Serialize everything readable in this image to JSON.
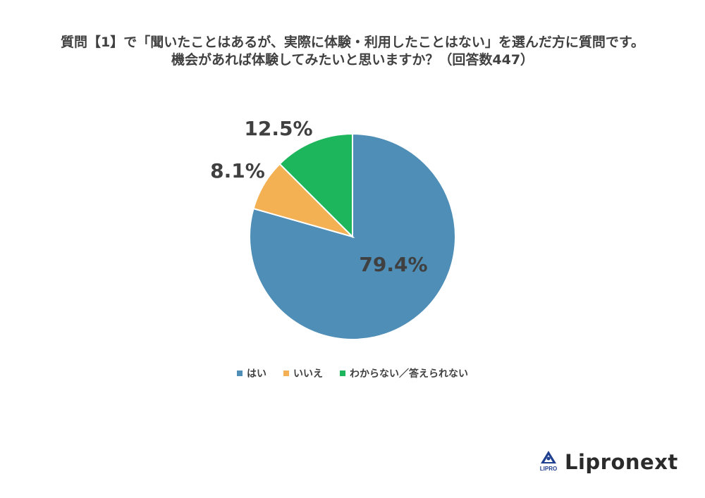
{
  "title": {
    "line1": "質問【1】で「聞いたことはあるが、実際に体験・利用したことはない」を選んだ方に質問です。",
    "line2": "機会があれば体験してみたいと思いますか？（回答数447）"
  },
  "chart_data": {
    "type": "pie",
    "title": "質問【1】で「聞いたことはあるが、実際に体験・利用したことはない」を選んだ方に質問です。機会があれば体験してみたいと思いますか？（回答数447）",
    "start_angle": "12 o'clock, clockwise",
    "slices": [
      {
        "label": "はい",
        "value": 79.4,
        "display": "79.4%",
        "color": "#4E8EB7"
      },
      {
        "label": "いいえ",
        "value": 8.1,
        "display": "8.1%",
        "color": "#F4B153"
      },
      {
        "label": "わからない／答えられない",
        "value": 12.5,
        "display": "12.5%",
        "color": "#1DB65C"
      }
    ],
    "legend_position": "bottom"
  },
  "legend": [
    {
      "label": "はい",
      "color": "#4E8EB7"
    },
    {
      "label": "いいえ",
      "color": "#F4B153"
    },
    {
      "label": "わからない／答えられない",
      "color": "#1DB65C"
    }
  ],
  "brand": {
    "name": "Lipronext",
    "logo_text": "LIPRO"
  }
}
